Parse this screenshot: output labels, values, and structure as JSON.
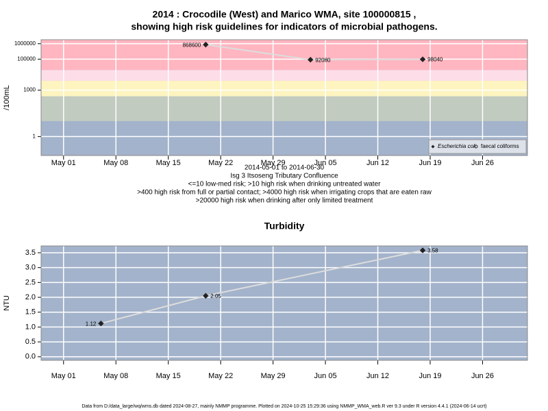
{
  "chart_data": [
    {
      "type": "line",
      "title": "2014 : Crocodile (West) and Marico WMA, site 100000815 ,",
      "subtitle": "showing high risk guidelines for indicators of microbial pathogens.",
      "ylabel": "/100mL",
      "log_y": true,
      "background": "#a3b3cb",
      "bands": [
        {
          "from": 10,
          "color": "#c2cbc0"
        },
        {
          "from": 400,
          "color": "#fdf4c0"
        },
        {
          "from": 4000,
          "color": "#fcdde8"
        },
        {
          "from": 20000,
          "color": "#ffb6c1"
        }
      ],
      "grid": true,
      "x": [
        "2014-05-20",
        "2014-06-03",
        "2014-06-18"
      ],
      "xlim": [
        "2014-04-28",
        "2014-07-02"
      ],
      "xticks": [
        {
          "value": "2014-05-01",
          "label": "May 01"
        },
        {
          "value": "2014-05-08",
          "label": "May 08"
        },
        {
          "value": "2014-05-15",
          "label": "May 15"
        },
        {
          "value": "2014-05-22",
          "label": "May 22"
        },
        {
          "value": "2014-05-29",
          "label": "May 29"
        },
        {
          "value": "2014-06-05",
          "label": "Jun 05"
        },
        {
          "value": "2014-06-12",
          "label": "Jun 12"
        },
        {
          "value": "2014-06-19",
          "label": "Jun 19"
        },
        {
          "value": "2014-06-26",
          "label": "Jun 26"
        }
      ],
      "ylim": [
        0.06,
        1800000
      ],
      "yticks": [
        1,
        1000,
        100000,
        1000000
      ],
      "series": [
        {
          "name": "Escherichia coli",
          "color": "#222222",
          "line_color": "#dddddd",
          "marker": "diamond",
          "values": [
            868600,
            92080,
            98040
          ]
        },
        {
          "name": "faecal coliforms",
          "color": "#222222",
          "line_color": "#dddddd",
          "marker": "circle",
          "values": [
            null,
            null,
            null
          ]
        }
      ],
      "legend": "bottom-right",
      "annotations": [
        "2014-05-01 to 2014-06-30",
        "Isg 3 Itsoseng Tributary Confluence",
        "<=10 low-med risk; >10 high risk when drinking untreated water",
        ">400 high risk from full or partial contact; >4000 high risk when irrigating crops that are eaten raw",
        ">20000 high risk when drinking after only limited treatment"
      ]
    },
    {
      "type": "line",
      "title": "Turbidity",
      "ylabel": "NTU",
      "log_y": false,
      "background": "#a3b3cb",
      "grid": true,
      "x": [
        "2014-05-06",
        "2014-05-20",
        "2014-06-18"
      ],
      "xlim": [
        "2014-04-28",
        "2014-07-02"
      ],
      "xticks": [
        {
          "value": "2014-05-01",
          "label": "May 01"
        },
        {
          "value": "2014-05-08",
          "label": "May 08"
        },
        {
          "value": "2014-05-15",
          "label": "May 15"
        },
        {
          "value": "2014-05-22",
          "label": "May 22"
        },
        {
          "value": "2014-05-29",
          "label": "May 29"
        },
        {
          "value": "2014-06-05",
          "label": "Jun 05"
        },
        {
          "value": "2014-06-12",
          "label": "Jun 12"
        },
        {
          "value": "2014-06-19",
          "label": "Jun 19"
        },
        {
          "value": "2014-06-26",
          "label": "Jun 26"
        }
      ],
      "ylim": [
        -0.12,
        3.73
      ],
      "yticks": [
        {
          "value": 0,
          "label": "0.0"
        },
        0.5,
        {
          "value": 1,
          "label": "1.0"
        },
        1.5,
        {
          "value": 2,
          "label": "2.0"
        },
        2.5,
        {
          "value": 3,
          "label": "3.0"
        },
        3.5
      ],
      "series": [
        {
          "name": "Turbidity",
          "color": "#222222",
          "line_color": "#dddddd",
          "marker": "diamond",
          "values": [
            1.12,
            2.05,
            3.58
          ]
        }
      ]
    }
  ],
  "footer": "Data from D:/data_large/wq/wms.db dated 2024-08-27, mainly NMMP programme. Plotted on 2024-10-25 15:29:36 using NMMP_WMA_web.R ver 9.3 under R version 4.4.1 (2024-06-14 ucrt)"
}
